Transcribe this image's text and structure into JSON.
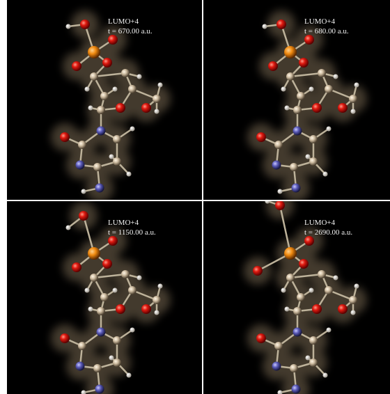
{
  "panels": [
    {
      "label": "LUMO+4",
      "time": "t = 670.00 a.u."
    },
    {
      "label": "LUMO+4",
      "time": "t = 680.00 a.u."
    },
    {
      "label": "LUMO+4",
      "time": "t = 1150.00 a.u."
    },
    {
      "label": "LUMO+4",
      "time": "t = 2690.00 a.u."
    }
  ]
}
